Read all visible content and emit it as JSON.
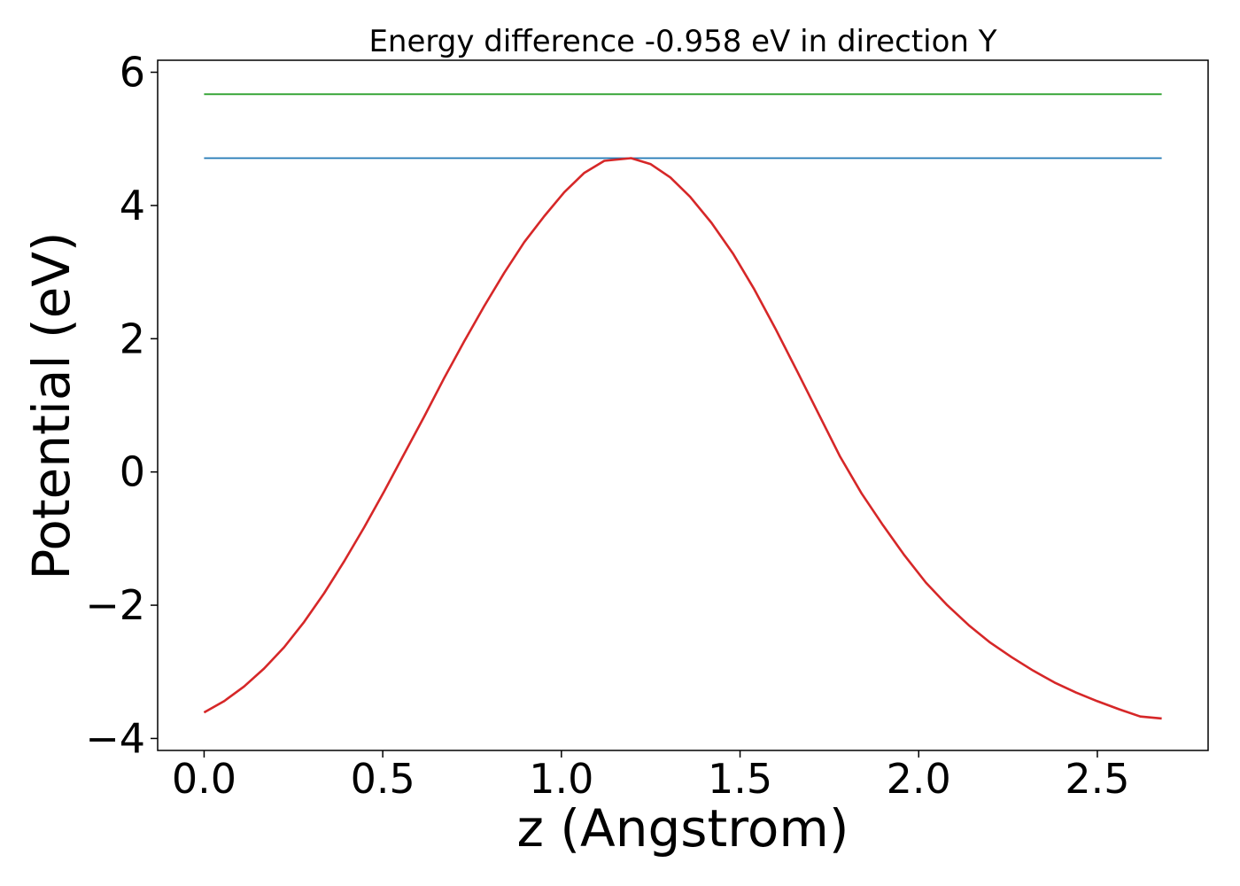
{
  "chart_data": {
    "type": "line",
    "title": "Energy difference -0.958 eV in direction Y",
    "xlabel": "z (Angstrom)",
    "ylabel": "Potential (eV)",
    "xlim": [
      -0.13,
      2.81
    ],
    "ylim": [
      -4.18,
      6.18
    ],
    "xticks": [
      0.0,
      0.5,
      1.0,
      1.5,
      2.0,
      2.5
    ],
    "xtick_labels": [
      "0.0",
      "0.5",
      "1.0",
      "1.5",
      "2.0",
      "2.5"
    ],
    "yticks": [
      -4,
      -2,
      0,
      2,
      4,
      6
    ],
    "ytick_labels": [
      "−4",
      "−2",
      "0",
      "2",
      "4",
      "6"
    ],
    "grid": false,
    "series": [
      {
        "color": "#2ca02c",
        "x": [
          0.0,
          2.68
        ],
        "y": [
          5.67,
          5.67
        ]
      },
      {
        "color": "#1f77b4",
        "x": [
          0.0,
          2.68
        ],
        "y": [
          4.71,
          4.71
        ]
      },
      {
        "color": "#d62728",
        "x": [
          0.0,
          0.056,
          0.112,
          0.168,
          0.224,
          0.28,
          0.336,
          0.392,
          0.448,
          0.504,
          0.56,
          0.616,
          0.672,
          0.728,
          0.784,
          0.84,
          0.896,
          0.952,
          1.008,
          1.064,
          1.12,
          1.195,
          1.25,
          1.305,
          1.36,
          1.42,
          1.48,
          1.54,
          1.6,
          1.66,
          1.72,
          1.78,
          1.84,
          1.9,
          1.96,
          2.02,
          2.08,
          2.14,
          2.2,
          2.26,
          2.32,
          2.38,
          2.44,
          2.5,
          2.56,
          2.62,
          2.68
        ],
        "y": [
          -3.61,
          -3.44,
          -3.22,
          -2.95,
          -2.63,
          -2.25,
          -1.82,
          -1.34,
          -0.83,
          -0.29,
          0.27,
          0.83,
          1.41,
          1.96,
          2.49,
          2.99,
          3.45,
          3.84,
          4.2,
          4.49,
          4.67,
          4.71,
          4.62,
          4.42,
          4.13,
          3.74,
          3.28,
          2.74,
          2.14,
          1.51,
          0.87,
          0.23,
          -0.32,
          -0.8,
          -1.25,
          -1.66,
          -2.0,
          -2.3,
          -2.56,
          -2.78,
          -2.98,
          -3.16,
          -3.31,
          -3.44,
          -3.56,
          -3.67,
          -3.7
        ]
      }
    ]
  }
}
